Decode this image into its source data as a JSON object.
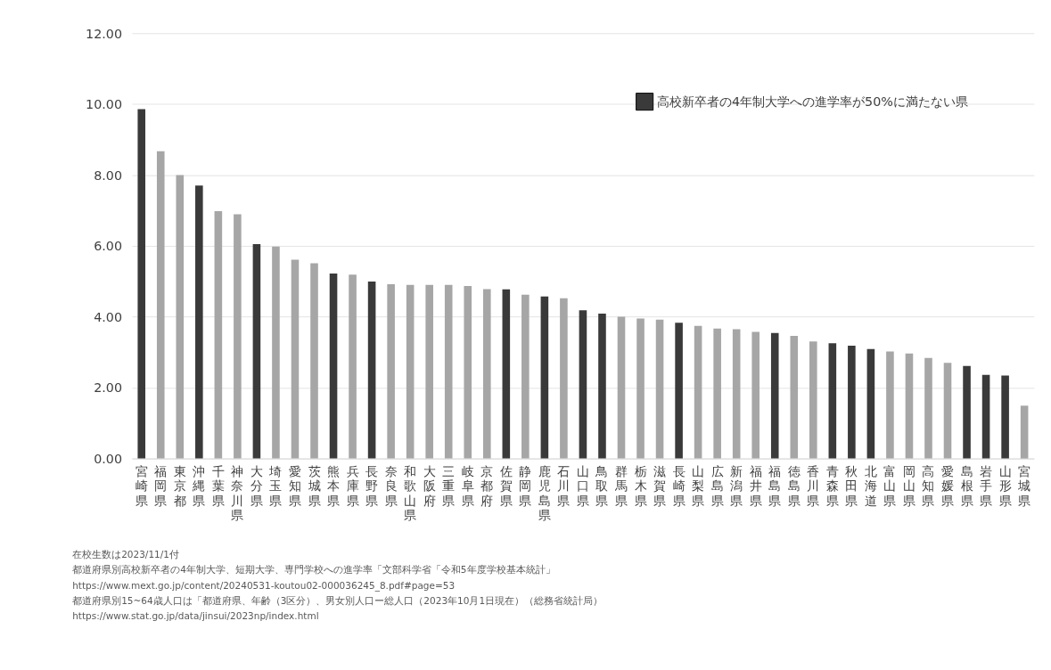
{
  "chart_data": {
    "type": "bar",
    "categories": [
      "宮崎県",
      "福岡県",
      "東京都",
      "沖縄県",
      "千葉県",
      "神奈川県",
      "大分県",
      "埼玉県",
      "愛知県",
      "茨城県",
      "熊本県",
      "兵庫県",
      "長野県",
      "奈良県",
      "和歌山県",
      "大阪府",
      "三重県",
      "岐阜県",
      "京都府",
      "佐賀県",
      "静岡県",
      "鹿児島県",
      "石川県",
      "山口県",
      "鳥取県",
      "群馬県",
      "栃木県",
      "滋賀県",
      "長崎県",
      "山梨県",
      "広島県",
      "新潟県",
      "福井県",
      "福島県",
      "徳島県",
      "香川県",
      "青森県",
      "秋田県",
      "北海道",
      "富山県",
      "岡山県",
      "高知県",
      "愛媛県",
      "島根県",
      "岩手県",
      "山形県",
      "宮城県"
    ],
    "series": [
      {
        "name": "高校新卒者の4年制大学への進学率が50%に満たない県",
        "color": "#3a3a3a",
        "values": [
          9.86,
          null,
          null,
          7.7,
          null,
          null,
          6.05,
          null,
          null,
          null,
          5.22,
          null,
          4.99,
          null,
          null,
          null,
          null,
          null,
          null,
          4.77,
          null,
          4.57,
          null,
          4.18,
          4.09,
          null,
          null,
          null,
          3.83,
          null,
          null,
          null,
          null,
          3.54,
          null,
          null,
          3.25,
          3.18,
          3.09,
          null,
          null,
          null,
          null,
          2.61,
          2.36,
          2.34,
          null
        ]
      },
      {
        "color": "#a6a6a6",
        "values": [
          null,
          8.67,
          8.0,
          null,
          6.98,
          6.89,
          null,
          5.98,
          5.61,
          5.51,
          null,
          5.19,
          null,
          4.92,
          4.9,
          4.9,
          4.9,
          4.87,
          4.78,
          null,
          4.62,
          null,
          4.52,
          null,
          null,
          4.0,
          3.95,
          3.92,
          null,
          3.74,
          3.67,
          3.65,
          3.57,
          null,
          3.46,
          3.3,
          null,
          null,
          null,
          3.02,
          2.96,
          2.84,
          2.7,
          null,
          null,
          null,
          1.49
        ]
      }
    ],
    "ylim": [
      0,
      12
    ],
    "yticks": [
      {
        "value": 0,
        "label": "0.00"
      },
      {
        "value": 2,
        "label": "2.00"
      },
      {
        "value": 4,
        "label": "4.00"
      },
      {
        "value": 6,
        "label": "6.00"
      },
      {
        "value": 8,
        "label": "8.00"
      },
      {
        "value": 10,
        "label": "10.00"
      },
      {
        "value": 12,
        "label": "12.00"
      }
    ],
    "grid": "y",
    "legend": "top right",
    "annotations": [
      "在校生数は2023/11/1付",
      "都道府県別高校新卒者の4年制大学、短期大学、専門学校への進学率「文部科学省「令和5年度学校基本統計」",
      "     https://www.mext.go.jp/content/20240531-koutou02-000036245_8.pdf#page=53",
      "都道府県別15~64歳人口は「都道府県、年齢（3区分）、男女別人口ー総人口（2023年10月1日現在）（総務省統計局）",
      "     https://www.stat.go.jp/data/jinsui/2023np/index.html"
    ]
  }
}
